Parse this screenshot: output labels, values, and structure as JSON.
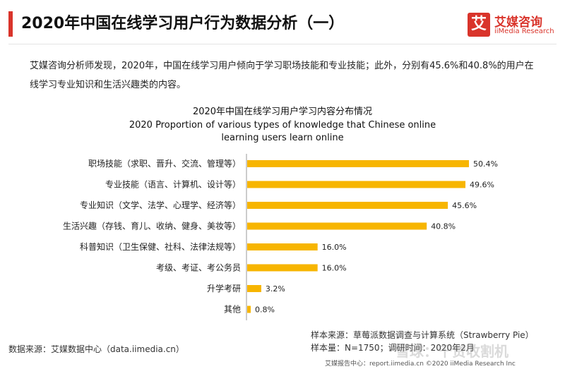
{
  "header": {
    "title": "2020年中国在线学习用户行为数据分析（一）",
    "logo_badge": "艾",
    "logo_cn": "艾媒咨询",
    "logo_en": "iiMedia Research"
  },
  "description": "艾媒咨询分析师发现，2020年，中国在线学习用户倾向于学习职场技能和专业技能；此外，分别有45.6%和40.8%的用户在线学习专业知识和生活兴趣类的内容。",
  "chart_data": {
    "type": "bar",
    "orientation": "horizontal",
    "title": "2020年中国在线学习用户学习内容分布情况",
    "subtitle_en_line1": "2020 Proportion of various types of knowledge that Chinese online",
    "subtitle_en_line2": "learning users learn online",
    "categories": [
      "职场技能（求职、晋升、交流、管理等）",
      "专业技能（语言、计算机、设计等）",
      "专业知识（文学、法学、心理学、经济等）",
      "生活兴趣（存钱、育儿、收纳、健身、美妆等）",
      "科普知识（卫生保健、社科、法律法规等）",
      "考级、考证、考公务员",
      "升学考研",
      "其他"
    ],
    "values": [
      50.4,
      49.6,
      45.6,
      40.8,
      16.0,
      16.0,
      3.2,
      0.8
    ],
    "value_labels": [
      "50.4%",
      "49.6%",
      "45.6%",
      "40.8%",
      "16.0%",
      "16.0%",
      "3.2%",
      "0.8%"
    ],
    "unit": "%",
    "xlim": [
      0,
      50.4
    ],
    "bar_color": "#f7b500",
    "grid": false,
    "legend": "none"
  },
  "source": {
    "left": "数据来源：艾媒数据中心（data.iimedia.cn）",
    "right_line1": "样本来源：草莓派数据调查与计算系统（Strawberry Pie）",
    "right_line2": "样本量：N=1750；调研时间：2020年2月"
  },
  "footer": "艾媒报告中心：report.iimedia.cn  ©2020  iiMedia Research  Inc",
  "watermark": "雪球：千贷收割机"
}
